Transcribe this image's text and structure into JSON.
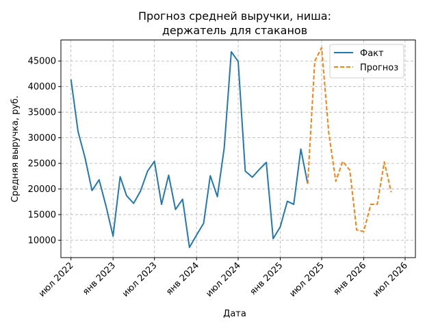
{
  "chart_data": {
    "type": "line",
    "title": [
      "Прогноз средней выручки, ниша:",
      "держатель для стаканов"
    ],
    "xlabel": "Дата",
    "ylabel": "Средняя выручка, руб.",
    "ylim": [
      6600,
      49100
    ],
    "xlim": [
      "2022-05-18",
      "2026-08-15"
    ],
    "grid": true,
    "legend_position": "top-right",
    "x_ticks": [
      {
        "date": "2022-07-01",
        "label": "июл 2022"
      },
      {
        "date": "2023-01-01",
        "label": "янв 2023"
      },
      {
        "date": "2023-07-01",
        "label": "июл 2023"
      },
      {
        "date": "2024-01-01",
        "label": "янв 2024"
      },
      {
        "date": "2024-07-01",
        "label": "июл 2024"
      },
      {
        "date": "2025-01-01",
        "label": "янв 2025"
      },
      {
        "date": "2025-07-01",
        "label": "июл 2025"
      },
      {
        "date": "2026-01-01",
        "label": "янв 2026"
      },
      {
        "date": "2026-07-01",
        "label": "июл 2026"
      }
    ],
    "y_ticks": [
      10000,
      15000,
      20000,
      25000,
      30000,
      35000,
      40000,
      45000
    ],
    "series": [
      {
        "name": "Факт",
        "color": "#1f77b4",
        "dash": "solid",
        "points": [
          [
            "2022-07-01",
            41400
          ],
          [
            "2022-08-01",
            31200
          ],
          [
            "2022-09-01",
            26000
          ],
          [
            "2022-10-01",
            19700
          ],
          [
            "2022-11-01",
            21800
          ],
          [
            "2022-12-01",
            16700
          ],
          [
            "2023-01-01",
            10800
          ],
          [
            "2023-02-01",
            22400
          ],
          [
            "2023-03-01",
            18700
          ],
          [
            "2023-04-01",
            17200
          ],
          [
            "2023-05-01",
            19600
          ],
          [
            "2023-06-01",
            23500
          ],
          [
            "2023-07-01",
            25400
          ],
          [
            "2023-08-01",
            17000
          ],
          [
            "2023-09-01",
            22700
          ],
          [
            "2023-10-01",
            16000
          ],
          [
            "2023-11-01",
            18000
          ],
          [
            "2023-12-01",
            8600
          ],
          [
            "2024-01-01",
            11000
          ],
          [
            "2024-02-01",
            13300
          ],
          [
            "2024-03-01",
            22600
          ],
          [
            "2024-04-01",
            18500
          ],
          [
            "2024-05-01",
            28000
          ],
          [
            "2024-06-01",
            46800
          ],
          [
            "2024-07-01",
            44900
          ],
          [
            "2024-08-01",
            23500
          ],
          [
            "2024-09-01",
            22300
          ],
          [
            "2024-10-01",
            23800
          ],
          [
            "2024-11-01",
            25200
          ],
          [
            "2024-12-01",
            10300
          ],
          [
            "2025-01-01",
            12600
          ],
          [
            "2025-02-01",
            17600
          ],
          [
            "2025-03-01",
            17000
          ],
          [
            "2025-04-01",
            27800
          ],
          [
            "2025-05-01",
            21000
          ]
        ]
      },
      {
        "name": "Прогноз",
        "color": "#ff7f0e",
        "dash": "dashed",
        "points": [
          [
            "2025-05-01",
            21000
          ],
          [
            "2025-06-01",
            45000
          ],
          [
            "2025-07-01",
            47600
          ],
          [
            "2025-08-01",
            31000
          ],
          [
            "2025-09-01",
            21500
          ],
          [
            "2025-10-01",
            25400
          ],
          [
            "2025-11-01",
            23700
          ],
          [
            "2025-12-01",
            12000
          ],
          [
            "2026-01-01",
            11700
          ],
          [
            "2026-02-01",
            17000
          ],
          [
            "2026-03-01",
            17000
          ],
          [
            "2026-04-01",
            25300
          ],
          [
            "2026-05-01",
            19400
          ]
        ]
      }
    ]
  }
}
